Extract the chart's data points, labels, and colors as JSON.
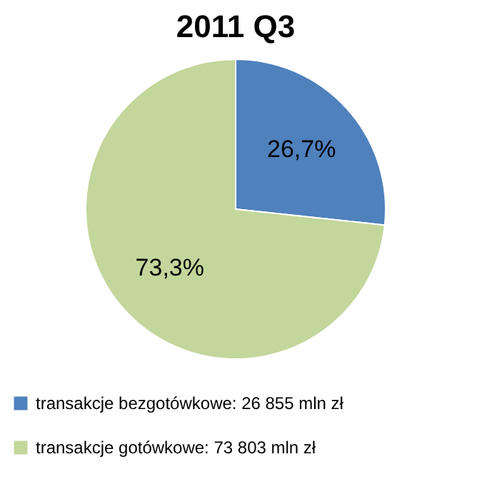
{
  "chart_data": {
    "type": "pie",
    "title": "2011 Q3",
    "categories": [
      "transakcje bezgotówkowe:  26 855 mln zł",
      "transakcje gotówkowe:      73 803 mln zł"
    ],
    "values": [
      26.7,
      73.3
    ],
    "value_labels": [
      "26,7%",
      "73,3%"
    ],
    "colors": [
      "#4f81bd",
      "#c3d69b"
    ],
    "legend": "bottom"
  }
}
